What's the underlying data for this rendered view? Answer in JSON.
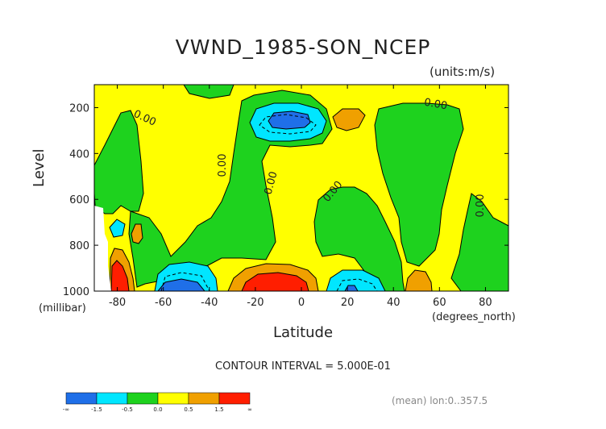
{
  "chart_data": {
    "type": "heatmap",
    "title": "VWND_1985-SON_NCEP",
    "units": "(units:m/s)",
    "xlabel": "Latitude",
    "ylabel": "Level",
    "x_unit_label": "(degrees_north)",
    "y_unit_label": "(millibar)",
    "xlim": [
      -90,
      90
    ],
    "ylim": [
      1000,
      100
    ],
    "x_ticks": [
      -80,
      -60,
      -40,
      -20,
      0,
      20,
      40,
      60,
      80
    ],
    "y_ticks": [
      200,
      400,
      600,
      800,
      1000
    ],
    "contour_interval_text": "CONTOUR INTERVAL = 5.000E-01",
    "contour_labels": [
      "0.00",
      "0.00",
      "0.00",
      "0.00",
      "0.00",
      "0.00"
    ],
    "colorbar": {
      "colors": [
        "#1f6fe8",
        "#00e6ff",
        "#1ed21e",
        "#ffff00",
        "#f0a000",
        "#ff1e00"
      ],
      "tick_labels": [
        "-∞",
        "-1.5",
        "-0.5",
        "0.0",
        "0.5",
        "1.5",
        "∞"
      ]
    },
    "annotation": "(mean) lon:0..357.5"
  }
}
